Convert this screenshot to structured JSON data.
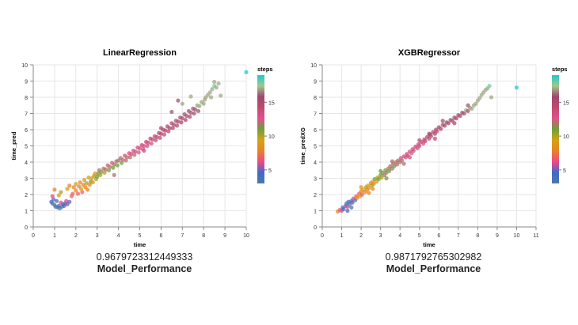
{
  "chart_data": [
    {
      "type": "scatter",
      "title": "LinearRegression",
      "xlabel": "time",
      "ylabel": "time_pred",
      "xlim": [
        0,
        10
      ],
      "ylim": [
        0,
        10
      ],
      "xticks": [
        "0",
        "1",
        "2",
        "3",
        "4",
        "5",
        "6",
        "7",
        "8",
        "9",
        "10"
      ],
      "yticks": [
        "0",
        "1",
        "2",
        "3",
        "4",
        "5",
        "6",
        "7",
        "8",
        "9",
        "10"
      ],
      "grid": true,
      "legend": {
        "title": "steps",
        "ticks": [
          "15",
          "10",
          "5"
        ],
        "placement": "right"
      },
      "points": [
        [
          0.85,
          1.55,
          4
        ],
        [
          0.9,
          1.45,
          3
        ],
        [
          0.95,
          1.7,
          5
        ],
        [
          1.0,
          1.35,
          3
        ],
        [
          1.05,
          1.25,
          3
        ],
        [
          1.1,
          1.6,
          4
        ],
        [
          1.15,
          1.2,
          3
        ],
        [
          1.2,
          1.3,
          4
        ],
        [
          1.25,
          1.15,
          3
        ],
        [
          1.3,
          1.5,
          6
        ],
        [
          1.35,
          1.25,
          3
        ],
        [
          1.4,
          1.4,
          4
        ],
        [
          1.45,
          1.3,
          4
        ],
        [
          1.5,
          1.45,
          5
        ],
        [
          1.55,
          1.6,
          6
        ],
        [
          1.6,
          1.4,
          5
        ],
        [
          1.7,
          1.55,
          5
        ],
        [
          1.8,
          1.9,
          7
        ],
        [
          1.0,
          2.3,
          8
        ],
        [
          0.9,
          1.9,
          6
        ],
        [
          1.2,
          1.95,
          9
        ],
        [
          1.3,
          2.15,
          10
        ],
        [
          1.6,
          2.35,
          9
        ],
        [
          1.7,
          2.55,
          8
        ],
        [
          1.9,
          2.45,
          8
        ],
        [
          1.85,
          2.05,
          7
        ],
        [
          2.0,
          2.25,
          8
        ],
        [
          2.0,
          2.65,
          9
        ],
        [
          2.1,
          2.05,
          7
        ],
        [
          2.15,
          2.5,
          8
        ],
        [
          2.2,
          2.75,
          8
        ],
        [
          2.25,
          2.35,
          9
        ],
        [
          2.3,
          2.15,
          7
        ],
        [
          2.35,
          2.6,
          8
        ],
        [
          2.4,
          2.9,
          9
        ],
        [
          2.45,
          2.45,
          8
        ],
        [
          2.5,
          2.7,
          10
        ],
        [
          2.55,
          2.3,
          8
        ],
        [
          2.6,
          3.05,
          9
        ],
        [
          2.65,
          2.6,
          8
        ],
        [
          2.7,
          2.8,
          11
        ],
        [
          2.75,
          3.0,
          9
        ],
        [
          2.8,
          2.75,
          9
        ],
        [
          2.85,
          3.15,
          10
        ],
        [
          2.9,
          3.3,
          9
        ],
        [
          2.95,
          2.95,
          10
        ],
        [
          3.0,
          3.1,
          11
        ],
        [
          3.05,
          3.3,
          11
        ],
        [
          3.1,
          3.5,
          12
        ],
        [
          3.15,
          3.2,
          10
        ],
        [
          3.2,
          3.4,
          11
        ],
        [
          3.3,
          3.6,
          12
        ],
        [
          3.35,
          3.35,
          10
        ],
        [
          3.4,
          3.55,
          12
        ],
        [
          3.5,
          3.8,
          12
        ],
        [
          3.55,
          3.5,
          11
        ],
        [
          3.6,
          3.7,
          12
        ],
        [
          3.7,
          3.95,
          12
        ],
        [
          3.75,
          3.65,
          11
        ],
        [
          3.8,
          3.85,
          12
        ],
        [
          3.9,
          4.05,
          12
        ],
        [
          3.95,
          3.8,
          11
        ],
        [
          4.0,
          4.1,
          12
        ],
        [
          4.1,
          4.25,
          12
        ],
        [
          4.15,
          3.95,
          11
        ],
        [
          4.2,
          4.15,
          12
        ],
        [
          4.3,
          4.4,
          13
        ],
        [
          4.35,
          4.1,
          12
        ],
        [
          4.4,
          4.3,
          12
        ],
        [
          4.5,
          4.55,
          13
        ],
        [
          4.55,
          4.3,
          12
        ],
        [
          4.6,
          4.5,
          13
        ],
        [
          4.7,
          4.7,
          13
        ],
        [
          4.75,
          4.45,
          12
        ],
        [
          4.8,
          4.65,
          13
        ],
        [
          4.9,
          4.9,
          13
        ],
        [
          4.95,
          4.6,
          12
        ],
        [
          5.0,
          4.85,
          13
        ],
        [
          5.1,
          5.05,
          14
        ],
        [
          5.15,
          4.8,
          13
        ],
        [
          5.2,
          5.0,
          13
        ],
        [
          5.3,
          5.25,
          14
        ],
        [
          5.35,
          5.0,
          13
        ],
        [
          5.4,
          5.2,
          14
        ],
        [
          5.5,
          5.45,
          14
        ],
        [
          5.55,
          5.15,
          13
        ],
        [
          5.6,
          5.4,
          14
        ],
        [
          5.7,
          5.6,
          14
        ],
        [
          5.75,
          5.35,
          14
        ],
        [
          5.8,
          5.55,
          14
        ],
        [
          5.9,
          5.8,
          15
        ],
        [
          5.95,
          5.5,
          14
        ],
        [
          6.0,
          5.75,
          15
        ],
        [
          6.1,
          6.0,
          15
        ],
        [
          6.15,
          5.7,
          14
        ],
        [
          6.2,
          5.95,
          15
        ],
        [
          6.3,
          6.2,
          15
        ],
        [
          6.35,
          5.9,
          14
        ],
        [
          6.4,
          6.1,
          15
        ],
        [
          6.5,
          6.4,
          15
        ],
        [
          6.55,
          6.1,
          15
        ],
        [
          6.6,
          6.3,
          15
        ],
        [
          6.7,
          6.55,
          16
        ],
        [
          6.75,
          6.25,
          15
        ],
        [
          6.8,
          6.5,
          15
        ],
        [
          6.9,
          6.75,
          16
        ],
        [
          6.95,
          6.45,
          15
        ],
        [
          7.0,
          6.7,
          16
        ],
        [
          7.1,
          6.95,
          16
        ],
        [
          7.15,
          6.6,
          15
        ],
        [
          7.2,
          6.85,
          16
        ],
        [
          7.3,
          7.15,
          16
        ],
        [
          7.35,
          6.8,
          15
        ],
        [
          7.4,
          7.05,
          16
        ],
        [
          7.5,
          7.3,
          16
        ],
        [
          7.55,
          7.0,
          16
        ],
        [
          7.6,
          7.25,
          16
        ],
        [
          7.7,
          7.5,
          17
        ],
        [
          7.75,
          7.15,
          16
        ],
        [
          7.8,
          7.45,
          17
        ],
        [
          7.9,
          7.7,
          17
        ],
        [
          8.0,
          7.6,
          17
        ],
        [
          8.05,
          7.85,
          17
        ],
        [
          8.1,
          8.0,
          17
        ],
        [
          8.2,
          8.15,
          17
        ],
        [
          8.3,
          8.3,
          17
        ],
        [
          8.35,
          8.0,
          17
        ],
        [
          8.4,
          8.5,
          17
        ],
        [
          8.5,
          8.7,
          18
        ],
        [
          8.6,
          8.6,
          17
        ],
        [
          8.5,
          8.95,
          17
        ],
        [
          8.7,
          8.85,
          17
        ],
        [
          8.8,
          8.1,
          17
        ],
        [
          7.4,
          8.05,
          17
        ],
        [
          7.0,
          7.6,
          17
        ],
        [
          6.8,
          7.8,
          16
        ],
        [
          3.8,
          3.2,
          12
        ],
        [
          5.2,
          4.7,
          13
        ],
        [
          6.0,
          6.1,
          15
        ],
        [
          6.5,
          7.1,
          16
        ],
        [
          10.0,
          9.55,
          19
        ]
      ]
    },
    {
      "type": "scatter",
      "title": "XGBRegressor",
      "xlabel": "time",
      "ylabel": "time_predXG",
      "xlim": [
        0,
        11
      ],
      "ylim": [
        0,
        10
      ],
      "xticks": [
        "0",
        "1",
        "2",
        "3",
        "4",
        "5",
        "6",
        "7",
        "8",
        "9",
        "10",
        "11"
      ],
      "yticks": [
        "0",
        "1",
        "2",
        "3",
        "4",
        "5",
        "6",
        "7",
        "8",
        "9",
        "10"
      ],
      "grid": true,
      "legend": {
        "title": "steps",
        "ticks": [
          "15",
          "10",
          "5"
        ],
        "placement": "right"
      },
      "points": [
        [
          0.8,
          0.95,
          8
        ],
        [
          0.9,
          1.05,
          7
        ],
        [
          1.0,
          1.0,
          6
        ],
        [
          1.05,
          1.2,
          5
        ],
        [
          1.1,
          1.1,
          4
        ],
        [
          1.2,
          1.3,
          5
        ],
        [
          1.25,
          1.45,
          4
        ],
        [
          1.3,
          1.25,
          6
        ],
        [
          1.35,
          1.55,
          4
        ],
        [
          1.4,
          1.4,
          3
        ],
        [
          1.5,
          1.6,
          4
        ],
        [
          1.55,
          1.5,
          5
        ],
        [
          1.6,
          1.75,
          6
        ],
        [
          1.7,
          1.65,
          3
        ],
        [
          1.75,
          1.9,
          7
        ],
        [
          1.8,
          1.8,
          8
        ],
        [
          1.9,
          2.05,
          7
        ],
        [
          1.95,
          1.9,
          9
        ],
        [
          2.0,
          2.2,
          8
        ],
        [
          2.05,
          2.0,
          7
        ],
        [
          2.1,
          2.3,
          9
        ],
        [
          2.2,
          2.15,
          8
        ],
        [
          2.25,
          2.45,
          10
        ],
        [
          2.3,
          2.3,
          8
        ],
        [
          2.35,
          2.55,
          9
        ],
        [
          2.4,
          2.4,
          9
        ],
        [
          2.5,
          2.7,
          8
        ],
        [
          2.55,
          2.55,
          10
        ],
        [
          2.6,
          2.8,
          9
        ],
        [
          2.65,
          2.65,
          8
        ],
        [
          2.7,
          2.95,
          11
        ],
        [
          2.8,
          2.8,
          9
        ],
        [
          2.85,
          3.05,
          10
        ],
        [
          2.9,
          2.95,
          11
        ],
        [
          3.0,
          3.2,
          11
        ],
        [
          3.05,
          3.05,
          10
        ],
        [
          3.1,
          3.35,
          11
        ],
        [
          3.2,
          3.2,
          12
        ],
        [
          3.25,
          3.5,
          11
        ],
        [
          3.3,
          3.35,
          12
        ],
        [
          3.4,
          3.6,
          12
        ],
        [
          3.45,
          3.45,
          11
        ],
        [
          3.5,
          3.75,
          12
        ],
        [
          3.6,
          3.6,
          12
        ],
        [
          3.65,
          3.9,
          12
        ],
        [
          3.7,
          3.75,
          11
        ],
        [
          3.8,
          4.0,
          12
        ],
        [
          3.85,
          3.85,
          12
        ],
        [
          3.9,
          4.1,
          12
        ],
        [
          4.0,
          4.0,
          12
        ],
        [
          4.05,
          4.25,
          13
        ],
        [
          4.1,
          4.1,
          12
        ],
        [
          4.2,
          4.35,
          13
        ],
        [
          4.3,
          4.3,
          12
        ],
        [
          4.35,
          4.5,
          13
        ],
        [
          4.4,
          4.4,
          13
        ],
        [
          4.5,
          4.65,
          13
        ],
        [
          4.6,
          4.55,
          12
        ],
        [
          4.65,
          4.8,
          13
        ],
        [
          4.7,
          4.7,
          13
        ],
        [
          4.8,
          4.95,
          14
        ],
        [
          4.9,
          4.85,
          13
        ],
        [
          4.95,
          5.1,
          14
        ],
        [
          5.0,
          5.0,
          13
        ],
        [
          5.1,
          5.25,
          14
        ],
        [
          5.2,
          5.15,
          13
        ],
        [
          5.25,
          5.4,
          14
        ],
        [
          5.3,
          5.3,
          14
        ],
        [
          5.4,
          5.55,
          15
        ],
        [
          5.5,
          5.45,
          14
        ],
        [
          5.55,
          5.7,
          15
        ],
        [
          5.6,
          5.6,
          14
        ],
        [
          5.7,
          5.85,
          15
        ],
        [
          5.8,
          5.75,
          15
        ],
        [
          5.85,
          6.0,
          15
        ],
        [
          5.9,
          5.9,
          14
        ],
        [
          6.0,
          6.15,
          15
        ],
        [
          6.1,
          6.05,
          15
        ],
        [
          6.2,
          6.3,
          16
        ],
        [
          6.3,
          6.25,
          15
        ],
        [
          6.4,
          6.45,
          16
        ],
        [
          6.5,
          6.4,
          15
        ],
        [
          6.6,
          6.6,
          16
        ],
        [
          6.7,
          6.55,
          16
        ],
        [
          6.8,
          6.75,
          16
        ],
        [
          6.9,
          6.7,
          15
        ],
        [
          7.0,
          6.9,
          16
        ],
        [
          7.1,
          6.85,
          16
        ],
        [
          7.2,
          7.05,
          16
        ],
        [
          7.3,
          7.0,
          16
        ],
        [
          7.4,
          7.2,
          17
        ],
        [
          7.5,
          7.15,
          16
        ],
        [
          7.6,
          7.35,
          17
        ],
        [
          7.7,
          7.3,
          17
        ],
        [
          7.8,
          7.5,
          17
        ],
        [
          7.9,
          7.6,
          17
        ],
        [
          8.0,
          7.8,
          17
        ],
        [
          8.1,
          7.95,
          17
        ],
        [
          8.2,
          8.15,
          17
        ],
        [
          8.3,
          8.3,
          17
        ],
        [
          8.4,
          8.45,
          17
        ],
        [
          8.5,
          8.55,
          17
        ],
        [
          8.6,
          8.7,
          18
        ],
        [
          8.7,
          8.0,
          17
        ],
        [
          2.0,
          2.45,
          9
        ],
        [
          2.6,
          2.35,
          8
        ],
        [
          3.3,
          3.0,
          11
        ],
        [
          3.6,
          4.05,
          12
        ],
        [
          4.2,
          3.9,
          12
        ],
        [
          5.0,
          5.35,
          14
        ],
        [
          5.8,
          5.45,
          14
        ],
        [
          6.2,
          6.55,
          16
        ],
        [
          6.8,
          6.4,
          15
        ],
        [
          7.5,
          7.5,
          16
        ],
        [
          1.5,
          1.2,
          3
        ],
        [
          1.3,
          1.0,
          4
        ],
        [
          2.4,
          2.1,
          8
        ],
        [
          3.0,
          3.45,
          11
        ],
        [
          4.5,
          4.3,
          13
        ],
        [
          5.5,
          5.75,
          15
        ],
        [
          10.0,
          8.6,
          19
        ]
      ]
    }
  ],
  "scores": {
    "left": {
      "value": "0.9679723312449333",
      "label": "Model_Performance"
    },
    "right": {
      "value": "0.9871792765302982",
      "label": "Model_Performance"
    }
  },
  "colors": {
    "grid": "#e6e6e6",
    "axis": "#888888",
    "legend_stops": [
      "#4c78a8",
      "#f58518",
      "#e45756",
      "#54a24b",
      "#b279a2",
      "#9d755d",
      "#d6616b",
      "#b7b7b7",
      "#17becf"
    ]
  }
}
